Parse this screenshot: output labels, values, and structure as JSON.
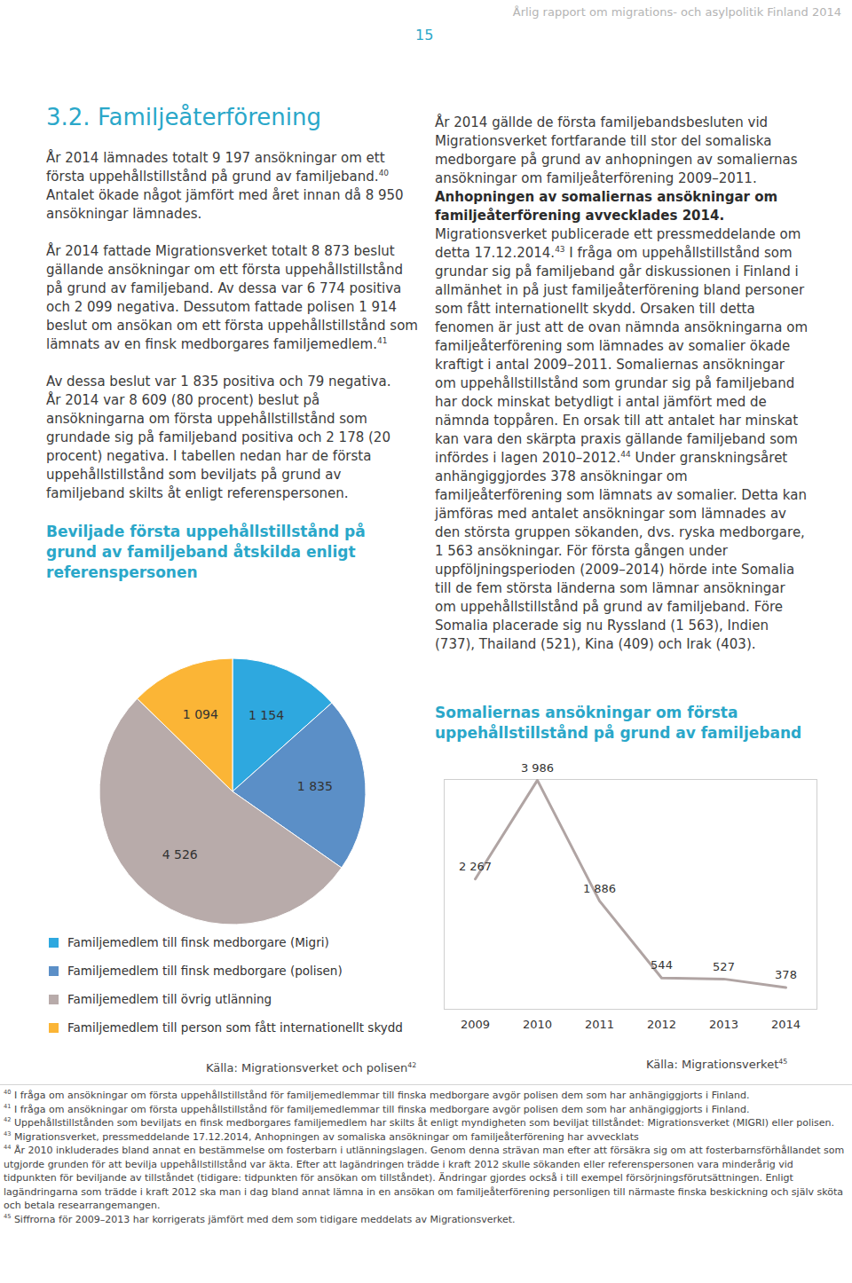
{
  "header": {
    "running_title": "Årlig rapport om migrations- och asylpolitik Finland 2014",
    "page_number": "15"
  },
  "left_column": {
    "heading": "3.2. Familjeåterförening",
    "paragraphs": [
      [
        {
          "text": "År 2014 lämnades totalt 9 197 ansökningar om ett första uppehållstillstånd på grund av familjeband."
        },
        {
          "sup": "40"
        },
        {
          "text": " Antalet ökade något jämfört med året innan då 8 950 ansökningar lämnades."
        }
      ],
      [
        {
          "text": "År 2014 fattade Migrationsverket totalt 8 873 beslut gällande ansökningar om ett första uppehållstillstånd på grund av familjeband. Av dessa var 6 774 positiva och 2 099 negativa. Dessutom fattade polisen 1 914 beslut om ansökan om ett första uppehållstillstånd som lämnats av en finsk medborgares familjemedlem."
        },
        {
          "sup": "41"
        }
      ],
      [
        {
          "text": "Av dessa beslut var 1 835 positiva och 79 negativa."
        },
        {
          "break": true
        },
        {
          "text": "År 2014 var 8 609 (80 procent) beslut på ansökningarna om första uppehållstillstånd som grundade sig på familjeband positiva och 2 178 (20 procent) negativa. I tabellen nedan har de första uppehållstillstånd som beviljats på grund av familjeband skilts åt enligt referenspersonen."
        }
      ]
    ]
  },
  "right_column": {
    "paragraphs": [
      [
        {
          "text": "År 2014 gällde de första familjebandsbesluten vid Migrationsverket fortfarande till stor del somaliska medborgare på grund av anhopningen av somaliernas ansökningar om familjeåterförening 2009–2011. "
        },
        {
          "text": "Anhopningen av somaliernas ansökningar om familjeåterförening avvecklades 2014.",
          "bold": true
        },
        {
          "text": " Migrationsverket publicerade ett pressmeddelande om detta 17.12.2014."
        },
        {
          "sup": "43"
        },
        {
          "text": " I fråga om uppehållstillstånd som grundar sig på familjeband går diskussionen i Finland i allmänhet in på just familjeåterförening bland personer som fått internationellt skydd. Orsaken till detta fenomen är just att de ovan nämnda ansökningarna om familjeåterförening som lämnades av somalier ökade kraftigt i antal 2009–2011. Somaliernas ansökningar om uppehållstillstånd som grundar sig på familjeband har dock minskat betydligt i antal jämfört med de nämnda toppåren. En orsak till att antalet har minskat kan vara den skärpta praxis gällande familjeband som infördes i lagen 2010–2012."
        },
        {
          "sup": "44"
        },
        {
          "text": " Under granskningsåret anhängiggjordes 378 ansökningar om familjeåterförening som lämnats av somalier. Detta kan jämföras med antalet ansökningar som lämnades av den största gruppen sökanden, dvs. ryska medborgare, 1 563 ansökningar. För första gången under uppföljningsperioden (2009–2014) hörde inte Somalia till de fem största länderna som lämnar ansökningar om uppehållstillstånd på grund av familjeband. Före Somalia placerade sig nu Ryssland (1 563), Indien (737), Thailand (521), Kina (409) och Irak (403)."
        }
      ]
    ]
  },
  "chart_data": [
    {
      "type": "pie",
      "title": "Beviljade första uppehållstillstånd på grund av familjeband åtskilda enligt referenspersonen",
      "categories": [
        "Familjemedlem till finsk medborgare (Migri)",
        "Familjemedlem till finsk medborgare (polisen)",
        "Familjemedlem till övrig utlänning",
        "Familjemedlem till person som fått internationellt skydd"
      ],
      "values": [
        1154,
        1835,
        4526,
        1094
      ],
      "value_labels": [
        "1 154",
        "1 835",
        "4 526",
        "1 094"
      ],
      "colors": [
        "#2ea8df",
        "#5b8fc7",
        "#b8abaa",
        "#fbb536"
      ],
      "data_labels": true,
      "legend": "bottom",
      "source": "Källa: Migrationsverket och polisen",
      "source_note": "42"
    },
    {
      "type": "line",
      "title": "Somaliernas ansökningar om första uppehållstillstånd på grund av familjeband",
      "categories": [
        "2009",
        "2010",
        "2011",
        "2012",
        "2013",
        "2014"
      ],
      "values": [
        2267,
        3986,
        1886,
        544,
        527,
        378
      ],
      "value_labels": [
        "2 267",
        "3 986",
        "1 886",
        "544",
        "527",
        "378"
      ],
      "color": "#b0a4a3",
      "ylim": [
        0,
        4000
      ],
      "data_labels": true,
      "tick_labels": "x",
      "source": "Källa: Migrationsverket",
      "source_note": "45"
    }
  ],
  "footnotes": [
    {
      "number": "40",
      "text": "I fråga om ansökningar om första uppehållstillstånd för familjemedlemmar till finska medborgare avgör polisen dem som har anhängiggjorts i Finland."
    },
    {
      "number": "41",
      "text": "I fråga om ansökningar om första uppehållstillstånd för familjemedlemmar till finska medborgare avgör polisen dem som har anhängiggjorts i Finland."
    },
    {
      "number": "42",
      "text": "Uppehållstillstånden som beviljats en finsk medborgares familjemedlem har skilts åt enligt myndigheten som beviljat tillståndet: Migrationsverket (MIGRI) eller polisen."
    },
    {
      "number": "43",
      "text": "Migrationsverket, pressmeddelande 17.12.2014, Anhopningen av somaliska ansökningar om familjeåterförening har avvecklats"
    },
    {
      "number": "44",
      "text": "År 2010 inkluderades bland annat en bestämmelse om fosterbarn i utlänningslagen. Genom denna strävan man efter att försäkra sig om att fosterbarnsförhållandet som utgjorde grunden för att bevilja uppehållstillstånd var äkta. Efter att lagändringen trädde i kraft 2012 skulle sökanden eller referenspersonen vara minderårig vid tidpunkten för beviljande av tillståndet (tidigare: tidpunkten för ansökan om tillståndet). Ändringar gjordes också i till exempel försörjningsförutsättningen. Enligt lagändringarna som trädde i kraft 2012 ska man i dag bland annat lämna in en ansökan om familjeåterförening personligen till närmaste finska beskickning och själv sköta och betala researrangemangen."
    },
    {
      "number": "45",
      "text": "Siffrorna för 2009–2013 har korrigerats jämfört med dem som tidigare meddelats av Migrationsverket."
    }
  ]
}
